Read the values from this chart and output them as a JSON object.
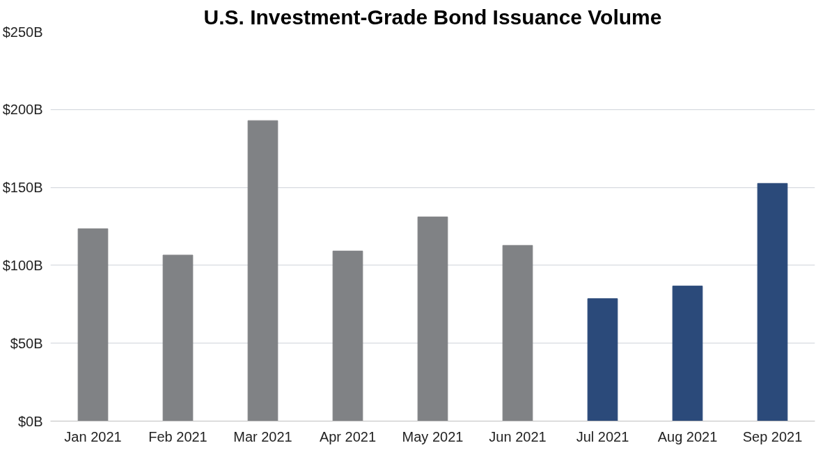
{
  "chart_data": {
    "type": "bar",
    "title": "U.S. Investment-Grade Bond Issuance Volume",
    "categories": [
      "Jan 2021",
      "Feb 2021",
      "Mar 2021",
      "Apr 2021",
      "May 2021",
      "Jun 2021",
      "Jul 2021",
      "Aug 2021",
      "Sep 2021"
    ],
    "values": [
      123.5,
      106.6,
      192.9,
      109.2,
      131.1,
      112.8,
      78.6,
      86.7,
      152.6
    ],
    "colors": [
      "#808285",
      "#808285",
      "#808285",
      "#808285",
      "#808285",
      "#808285",
      "#2b4a7a",
      "#2b4a7a",
      "#2b4a7a"
    ],
    "ylim": [
      0,
      250
    ],
    "yticks": [
      {
        "value": 0,
        "label": "$0B"
      },
      {
        "value": 50,
        "label": "$50B"
      },
      {
        "value": 100,
        "label": "$100B"
      },
      {
        "value": 150,
        "label": "$150B"
      },
      {
        "value": 200,
        "label": "$200B"
      },
      {
        "value": 250,
        "label": "$250B"
      }
    ],
    "grid": "y"
  }
}
